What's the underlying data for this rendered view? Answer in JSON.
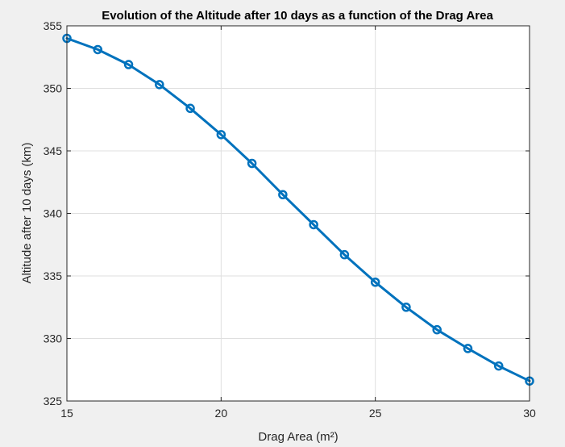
{
  "chart_data": {
    "type": "line",
    "title": "Evolution of the Altitude after 10 days as a function of the Drag Area",
    "xlabel": "Drag Area (m²)",
    "ylabel": "Altitude after 10 days (km)",
    "xlim": [
      15,
      30
    ],
    "ylim": [
      325,
      355
    ],
    "xticks": [
      15,
      20,
      25,
      30
    ],
    "yticks": [
      325,
      330,
      335,
      340,
      345,
      350,
      355
    ],
    "grid": true,
    "series": [
      {
        "color": "#0072bd",
        "marker": "circle",
        "x": [
          15,
          16,
          17,
          18,
          19,
          20,
          21,
          22,
          23,
          24,
          25,
          26,
          27,
          28,
          29,
          30
        ],
        "y": [
          354.0,
          353.1,
          351.9,
          350.3,
          348.4,
          346.3,
          344.0,
          341.5,
          339.1,
          336.7,
          334.5,
          332.5,
          330.7,
          329.2,
          327.8,
          326.6
        ]
      }
    ]
  }
}
